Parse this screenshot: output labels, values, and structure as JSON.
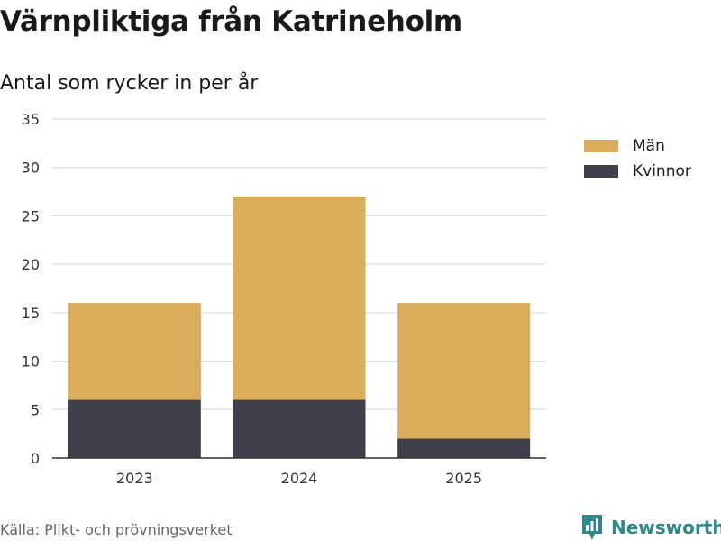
{
  "title": "Värnpliktiga från Katrineholm",
  "subtitle": "Antal som rycker in per år",
  "source": "Källa: Plikt- och prövningsverket",
  "brand": {
    "name": "Newsworthy",
    "icon": "newsworthy-logo-icon",
    "color": "#2d8a8a"
  },
  "colors": {
    "man": "#d9ad59",
    "kvinnor": "#403f4c",
    "grid": "#dddddd",
    "axis": "#333333",
    "tick_text": "#333333"
  },
  "legend": [
    {
      "label": "Män",
      "color": "#d9ad59"
    },
    {
      "label": "Kvinnor",
      "color": "#403f4c"
    }
  ],
  "chart_data": {
    "type": "bar",
    "stacked": true,
    "categories": [
      "2023",
      "2024",
      "2025"
    ],
    "series": [
      {
        "name": "Kvinnor",
        "values": [
          6,
          6,
          2
        ],
        "color": "#403f4c"
      },
      {
        "name": "Män",
        "values": [
          10,
          21,
          14
        ],
        "color": "#d9ad59"
      }
    ],
    "title": "Värnpliktiga från Katrineholm",
    "subtitle": "Antal som rycker in per år",
    "xlabel": "",
    "ylabel": "",
    "ylim": [
      0,
      35
    ],
    "yticks": [
      0,
      5,
      10,
      15,
      20,
      25,
      30,
      35
    ],
    "grid": true,
    "legend_position": "right"
  }
}
